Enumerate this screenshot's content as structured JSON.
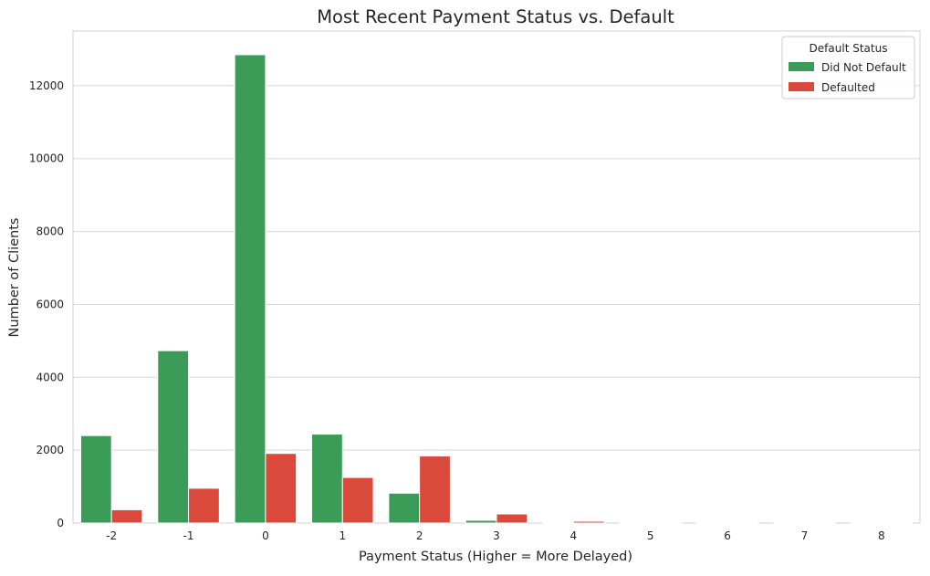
{
  "chart_data": {
    "type": "bar",
    "title": "Most Recent Payment Status vs. Default",
    "xlabel": "Payment Status (Higher = More Delayed)",
    "ylabel": "Number of Clients",
    "categories": [
      "-2",
      "-1",
      "0",
      "1",
      "2",
      "3",
      "4",
      "5",
      "6",
      "7",
      "8"
    ],
    "ylim": [
      0,
      13500
    ],
    "yticks": [
      0,
      2000,
      4000,
      6000,
      8000,
      10000,
      12000
    ],
    "grid": "horizontal",
    "legend": {
      "title": "Default Status",
      "placement": "top-right"
    },
    "series": [
      {
        "name": "Did Not Default",
        "color": "#3a9c56",
        "values": [
          2400,
          4730,
          12850,
          2440,
          820,
          75,
          20,
          13,
          5,
          2,
          8
        ]
      },
      {
        "name": "Defaulted",
        "color": "#d94a3d",
        "values": [
          365,
          955,
          1910,
          1250,
          1840,
          250,
          50,
          13,
          14,
          7,
          11
        ]
      }
    ]
  }
}
